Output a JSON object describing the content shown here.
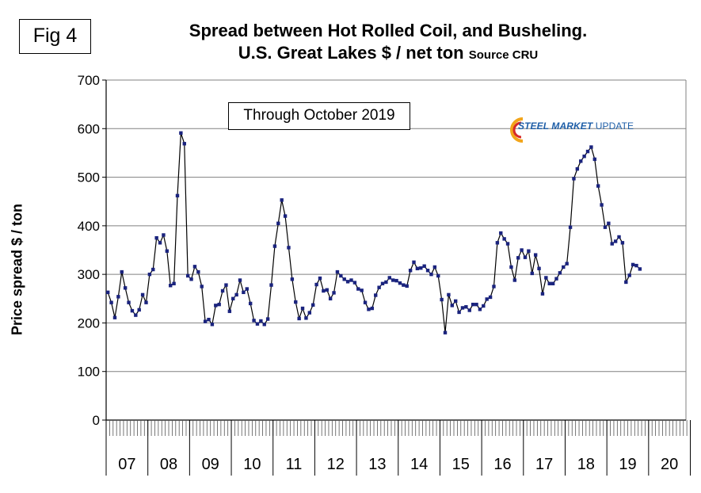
{
  "figure_label": "Fig 4",
  "title": {
    "line1": "Spread between Hot Rolled Coil, and Busheling.",
    "line2": "U.S. Great Lakes  $ / net ton",
    "source": "Source CRU"
  },
  "annotation": "Through October 2019",
  "logo": {
    "brand": "STEEL MARKET",
    "sub": " UPDATE"
  },
  "colors": {
    "line": "#000000",
    "marker": "#1a237e",
    "grid": "#808080",
    "logo": "#1f5fa8"
  },
  "chart_data": {
    "type": "line",
    "title": "Spread between Hot Rolled Coil, and Busheling. U.S. Great Lakes $ / net ton",
    "ylabel": "Price spread $ / ton",
    "xlabel": "",
    "ylim": [
      0,
      700
    ],
    "y_ticks": [
      0,
      100,
      200,
      300,
      400,
      500,
      600,
      700
    ],
    "x_start": "2007-01",
    "x_end": "2020-12",
    "x_tick_labels": [
      "07",
      "08",
      "09",
      "10",
      "11",
      "12",
      "13",
      "14",
      "15",
      "16",
      "17",
      "18",
      "19",
      "20"
    ],
    "grid": "horizontal",
    "series": [
      {
        "values": [
          263,
          242,
          211,
          254,
          305,
          272,
          242,
          225,
          216,
          227,
          258,
          242,
          300,
          310,
          375,
          365,
          381,
          348,
          277,
          281,
          462,
          591,
          569,
          297,
          290,
          316,
          305,
          275,
          203,
          207,
          197,
          236,
          238,
          266,
          278,
          224,
          250,
          258,
          288,
          263,
          270,
          240,
          205,
          198,
          204,
          197,
          208,
          278,
          358,
          405,
          453,
          420,
          355,
          290,
          243,
          209,
          230,
          210,
          221,
          237,
          279,
          292,
          266,
          268,
          250,
          262,
          305,
          297,
          290,
          285,
          288,
          283,
          270,
          267,
          242,
          228,
          230,
          257,
          273,
          281,
          284,
          293,
          288,
          287,
          282,
          278,
          276,
          308,
          325,
          312,
          313,
          317,
          308,
          300,
          315,
          297,
          248,
          180,
          258,
          236,
          245,
          222,
          231,
          233,
          226,
          238,
          238,
          228,
          235,
          249,
          253,
          275,
          365,
          385,
          373,
          363,
          315,
          288,
          334,
          350,
          335,
          348,
          302,
          340,
          312,
          260,
          293,
          281,
          281,
          291,
          303,
          315,
          322,
          397,
          497,
          517,
          533,
          543,
          553,
          562,
          537,
          482,
          443,
          397,
          405,
          363,
          368,
          377,
          365,
          284,
          298,
          320,
          318,
          311
        ]
      }
    ]
  }
}
